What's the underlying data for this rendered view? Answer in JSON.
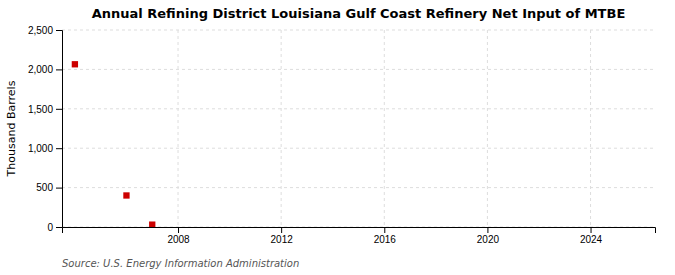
{
  "chart_data": {
    "type": "scatter",
    "title": "Annual Refining District Louisiana Gulf Coast Refinery Net Input of MTBE",
    "ylabel": "Thousand Barrels",
    "source": "Source: U.S. Energy Information Administration",
    "x": [
      2004,
      2006,
      2007
    ],
    "values": [
      2065,
      400,
      30
    ],
    "marker": "square",
    "color": "#cc0000",
    "xlim": [
      2003.5,
      2026.5
    ],
    "xticks": [
      2008,
      2012,
      2016,
      2020,
      2024
    ],
    "ylim": [
      0,
      2500
    ],
    "yticks": [
      0,
      500,
      {
        "value": 1000,
        "label": "1,000"
      },
      {
        "value": 1500,
        "label": "1,500"
      },
      {
        "value": 2000,
        "label": "2,000"
      },
      {
        "value": 2500,
        "label": "2,500"
      }
    ],
    "grid": true
  }
}
